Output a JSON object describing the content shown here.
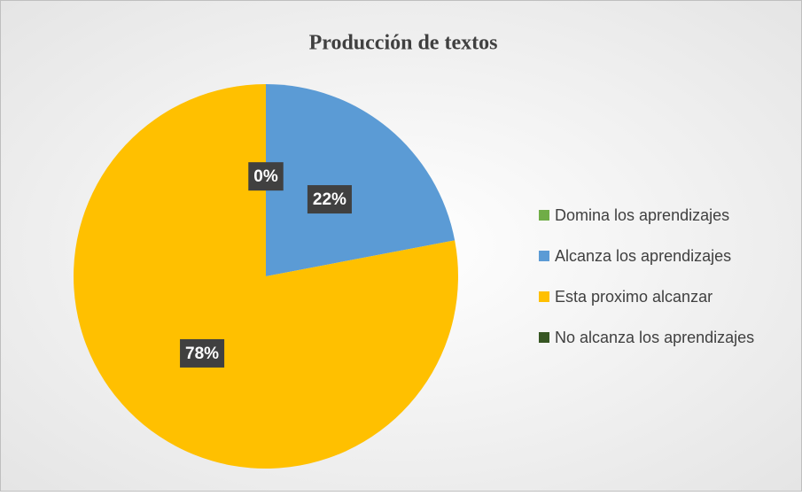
{
  "chart_data": {
    "type": "pie",
    "title": "Producción de textos",
    "categories": [
      "Domina los aprendizajes",
      "Alcanza los aprendizajes",
      "Esta proximo alcanzar",
      "No alcanza los aprendizajes"
    ],
    "values": [
      0,
      22,
      78,
      0
    ],
    "value_labels": [
      "0%",
      "22%",
      "78%",
      null
    ],
    "colors": [
      "#70ad47",
      "#5b9bd5",
      "#ffc000",
      "#375623"
    ],
    "legend": "right"
  }
}
